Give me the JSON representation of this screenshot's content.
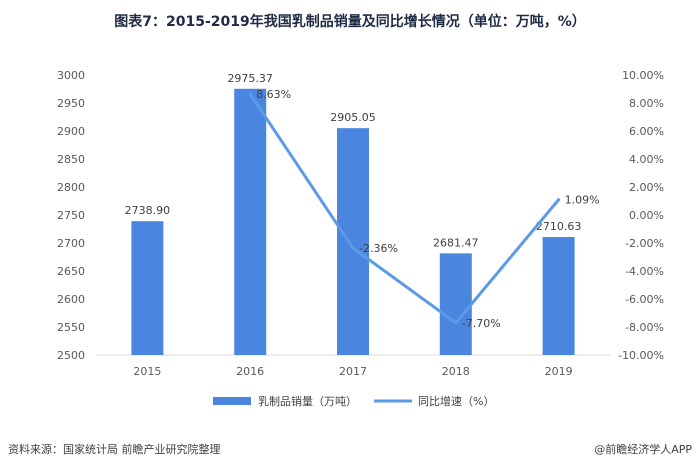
{
  "title": "图表7：2015-2019年我国乳制品销量及同比增长情况（单位：万吨，%）",
  "footer": {
    "source": "资料来源：国家统计局 前瞻产业研究院整理",
    "credit": "@前瞻经济学人APP"
  },
  "colors": {
    "bar": "#4a86e0",
    "line": "#5b9be6"
  },
  "chart_data": {
    "type": "bar",
    "categories": [
      "2015",
      "2016",
      "2017",
      "2018",
      "2019"
    ],
    "series": [
      {
        "name": "乳制品销量（万吨）",
        "type": "bar",
        "axis": "left",
        "values": [
          2738.9,
          2975.37,
          2905.05,
          2681.47,
          2710.63
        ],
        "labels": [
          "2738.90",
          "2975.37",
          "2905.05",
          "2681.47",
          "2710.63"
        ]
      },
      {
        "name": "同比增速（%）",
        "type": "line",
        "axis": "right",
        "x": [
          "2016",
          "2017",
          "2018",
          "2019"
        ],
        "values": [
          8.63,
          -2.36,
          -7.7,
          1.09
        ],
        "labels": [
          "8.63%",
          "-2.36%",
          "-7.70%",
          "1.09%"
        ]
      }
    ],
    "y_left": {
      "min": 2500,
      "max": 3000,
      "step": 50,
      "ticks": [
        "2500",
        "2550",
        "2600",
        "2650",
        "2700",
        "2750",
        "2800",
        "2850",
        "2900",
        "2950",
        "3000"
      ]
    },
    "y_right": {
      "min": -10,
      "max": 10,
      "step": 2,
      "ticks": [
        "-10.00%",
        "-8.00%",
        "-6.00%",
        "-4.00%",
        "-2.00%",
        "0.00%",
        "2.00%",
        "4.00%",
        "6.00%",
        "8.00%",
        "10.00%"
      ]
    },
    "grid": false,
    "legend": "bottom"
  }
}
